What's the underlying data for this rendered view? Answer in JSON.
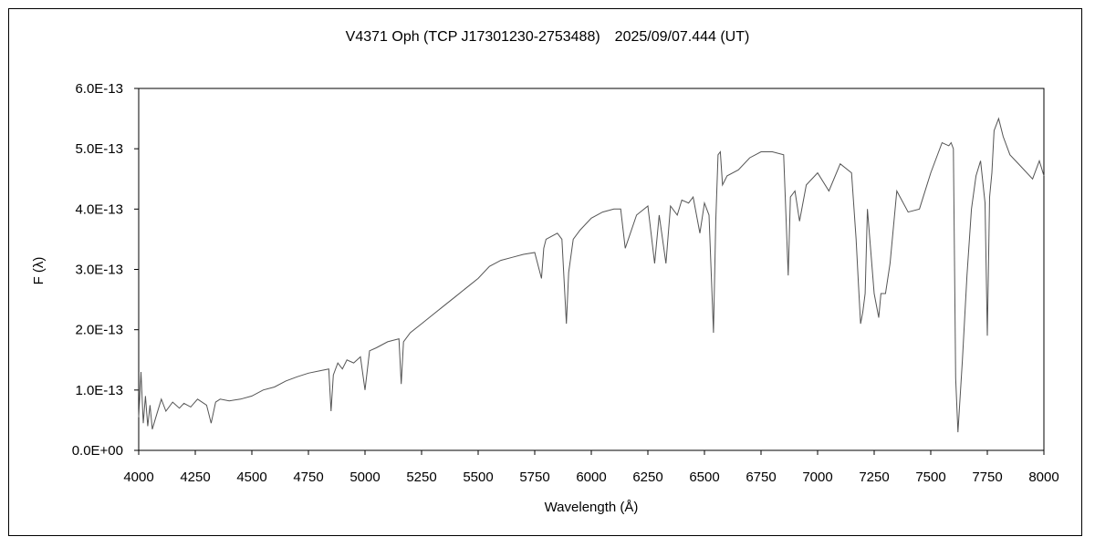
{
  "chart_data": {
    "type": "line",
    "title": "V4371 Oph (TCP J17301230-2753488)　2025/09/07.444 (UT)",
    "xlabel": "Wavelength (Å)",
    "ylabel": "F (λ)",
    "xlim": [
      4000,
      8000
    ],
    "ylim": [
      0,
      6e-13
    ],
    "x_ticks": [
      "4000",
      "4250",
      "4500",
      "4750",
      "5000",
      "5250",
      "5500",
      "5750",
      "6000",
      "6250",
      "6500",
      "6750",
      "7000",
      "7250",
      "7500",
      "7750",
      "8000"
    ],
    "y_ticks": [
      "0.0E+00",
      "1.0E-13",
      "2.0E-13",
      "3.0E-13",
      "4.0E-13",
      "5.0E-13",
      "6.0E-13"
    ],
    "grid": false,
    "legend": "none",
    "line_color": "#555555",
    "series": [
      {
        "x": [
          4000,
          4010,
          4020,
          4030,
          4040,
          4050,
          4060,
          4080,
          4100,
          4120,
          4150,
          4180,
          4200,
          4230,
          4260,
          4300,
          4320,
          4340,
          4360,
          4400,
          4450,
          4500,
          4550,
          4600,
          4650,
          4700,
          4750,
          4800,
          4840,
          4850,
          4860,
          4880,
          4900,
          4920,
          4950,
          4980,
          5000,
          5020,
          5050,
          5100,
          5150,
          5160,
          5170,
          5200,
          5250,
          5300,
          5350,
          5400,
          5450,
          5500,
          5550,
          5600,
          5650,
          5700,
          5750,
          5780,
          5790,
          5800,
          5850,
          5870,
          5890,
          5900,
          5920,
          5950,
          6000,
          6050,
          6100,
          6130,
          6150,
          6200,
          6250,
          6280,
          6300,
          6330,
          6350,
          6380,
          6400,
          6430,
          6450,
          6480,
          6500,
          6520,
          6540,
          6550,
          6560,
          6570,
          6580,
          6600,
          6650,
          6700,
          6750,
          6800,
          6850,
          6860,
          6870,
          6880,
          6900,
          6920,
          6950,
          7000,
          7050,
          7100,
          7150,
          7170,
          7180,
          7190,
          7200,
          7210,
          7220,
          7250,
          7270,
          7280,
          7300,
          7320,
          7350,
          7400,
          7450,
          7500,
          7550,
          7580,
          7590,
          7600,
          7610,
          7620,
          7640,
          7660,
          7680,
          7700,
          7720,
          7740,
          7750,
          7760,
          7770,
          7780,
          7800,
          7820,
          7850,
          7900,
          7950,
          7980,
          8000
        ],
        "y": [
          5.5e-14,
          1.3e-13,
          4.5e-14,
          9e-14,
          4e-14,
          7.5e-14,
          3.5e-14,
          6e-14,
          8.5e-14,
          6.5e-14,
          8e-14,
          7e-14,
          7.8e-14,
          7.2e-14,
          8.5e-14,
          7.5e-14,
          4.5e-14,
          8e-14,
          8.5e-14,
          8.2e-14,
          8.5e-14,
          9e-14,
          1e-13,
          1.05e-13,
          1.15e-13,
          1.22e-13,
          1.28e-13,
          1.32e-13,
          1.35e-13,
          6.5e-14,
          1.25e-13,
          1.45e-13,
          1.35e-13,
          1.5e-13,
          1.45e-13,
          1.55e-13,
          1e-13,
          1.65e-13,
          1.7e-13,
          1.8e-13,
          1.85e-13,
          1.1e-13,
          1.8e-13,
          1.95e-13,
          2.1e-13,
          2.25e-13,
          2.4e-13,
          2.55e-13,
          2.7e-13,
          2.85e-13,
          3.05e-13,
          3.15e-13,
          3.2e-13,
          3.25e-13,
          3.28e-13,
          2.85e-13,
          3.35e-13,
          3.5e-13,
          3.6e-13,
          3.5e-13,
          2.1e-13,
          2.95e-13,
          3.5e-13,
          3.65e-13,
          3.85e-13,
          3.95e-13,
          4e-13,
          4e-13,
          3.35e-13,
          3.9e-13,
          4.05e-13,
          3.1e-13,
          3.9e-13,
          3.1e-13,
          4.05e-13,
          3.9e-13,
          4.15e-13,
          4.1e-13,
          4.2e-13,
          3.6e-13,
          4.1e-13,
          3.9e-13,
          1.95e-13,
          3.8e-13,
          4.9e-13,
          4.95e-13,
          4.4e-13,
          4.55e-13,
          4.65e-13,
          4.85e-13,
          4.95e-13,
          4.95e-13,
          4.9e-13,
          3.9e-13,
          2.9e-13,
          4.2e-13,
          4.3e-13,
          3.8e-13,
          4.4e-13,
          4.6e-13,
          4.3e-13,
          4.75e-13,
          4.6e-13,
          3.5e-13,
          2.8e-13,
          2.1e-13,
          2.3e-13,
          2.6e-13,
          4e-13,
          2.6e-13,
          2.2e-13,
          2.6e-13,
          2.6e-13,
          3.1e-13,
          4.3e-13,
          3.95e-13,
          4e-13,
          4.6e-13,
          5.1e-13,
          5.05e-13,
          5.1e-13,
          5e-13,
          1.2e-13,
          3e-14,
          1.5e-13,
          2.9e-13,
          4e-13,
          4.55e-13,
          4.8e-13,
          4.1e-13,
          1.9e-13,
          4.2e-13,
          4.6e-13,
          5.3e-13,
          5.5e-13,
          5.2e-13,
          4.9e-13,
          4.7e-13,
          4.5e-13,
          4.8e-13,
          4.55e-13
        ]
      }
    ]
  }
}
